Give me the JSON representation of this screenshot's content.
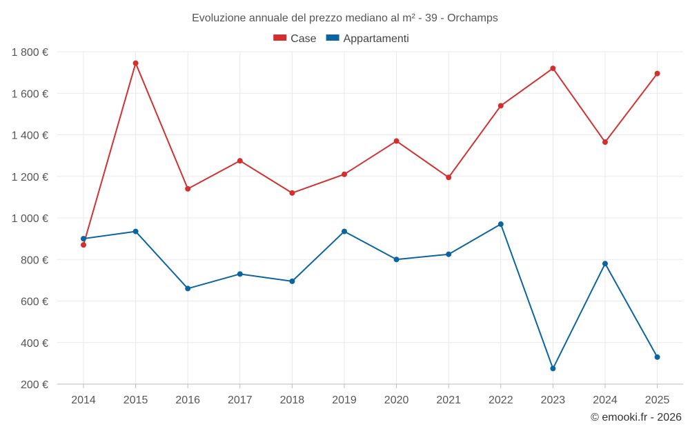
{
  "chart_data": {
    "type": "line",
    "title": "Evoluzione annuale del prezzo mediano al m² - 39 - Orchamps",
    "categories": [
      "2014",
      "2015",
      "2016",
      "2017",
      "2018",
      "2019",
      "2020",
      "2021",
      "2022",
      "2023",
      "2024",
      "2025"
    ],
    "series": [
      {
        "name": "Case",
        "color": "#d32f2f",
        "values": [
          870,
          1745,
          1140,
          1275,
          1120,
          1210,
          1370,
          1195,
          1540,
          1720,
          1365,
          1695
        ]
      },
      {
        "name": "Appartamenti",
        "color": "#0a64a0",
        "values": [
          900,
          935,
          660,
          730,
          695,
          935,
          800,
          825,
          970,
          275,
          780,
          330
        ]
      }
    ],
    "ylim": [
      200,
      1800
    ],
    "yticks": [
      200,
      400,
      600,
      800,
      1000,
      1200,
      1400,
      1600,
      1800
    ],
    "ytick_labels": [
      "200 €",
      "400 €",
      "600 €",
      "800 €",
      "1 000 €",
      "1 200 €",
      "1 400 €",
      "1 600 €",
      "1 800 €"
    ],
    "xlabel": "",
    "ylabel": "",
    "legend": "top-center",
    "grid": true
  },
  "credit": "© emooki.fr - 2026"
}
